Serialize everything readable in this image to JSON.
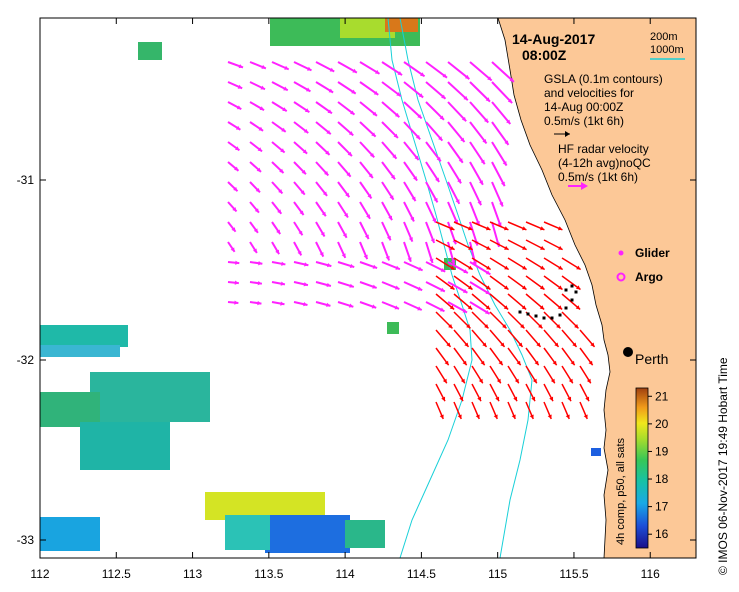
{
  "title": {
    "date": "14-Aug-2017",
    "time": "08:00Z"
  },
  "depth_legend": {
    "labels": [
      "200m",
      "1000m"
    ],
    "color": "#19d0d8"
  },
  "gsla_note": {
    "lines": [
      "GSLA (0.1m contours)",
      "and velocities for",
      "14-Aug 00:00Z",
      "0.5m/s (1kt 6h)"
    ],
    "arrow_color": "#000000"
  },
  "hf_note": {
    "lines": [
      "HF radar velocity",
      "(4-12h avg)noQC",
      "0.5m/s (1kt 6h)"
    ],
    "arrow_color": "#ff22ff"
  },
  "markers": {
    "glider": {
      "label": "Glider",
      "color": "#ff22ff"
    },
    "argo": {
      "label": "Argo",
      "color": "#ff22ff"
    },
    "city": {
      "label": "Perth",
      "lon": 115.86,
      "lat": -31.95
    }
  },
  "axes": {
    "x_ticks": [
      "112",
      "112.5",
      "113",
      "113.5",
      "114",
      "114.5",
      "115",
      "115.5",
      "116"
    ],
    "y_ticks": [
      "-31",
      "-32",
      "-33"
    ],
    "x_range": [
      112,
      116.3
    ],
    "y_range": [
      -33.1,
      -30.1
    ]
  },
  "colorbar": {
    "label": "4h comp, p50, all sats",
    "ticks": [
      "16",
      "17",
      "18",
      "19",
      "20",
      "21"
    ],
    "range": [
      15.5,
      21.3
    ]
  },
  "credit": "©  IMOS 06-Nov-2017 19:49 Hobart Time",
  "colors": {
    "land": "#fcc897",
    "hf_arrows": "#ff22ff",
    "gsla_arrows": "#ff0000",
    "isobath": "#19d0d8"
  }
}
